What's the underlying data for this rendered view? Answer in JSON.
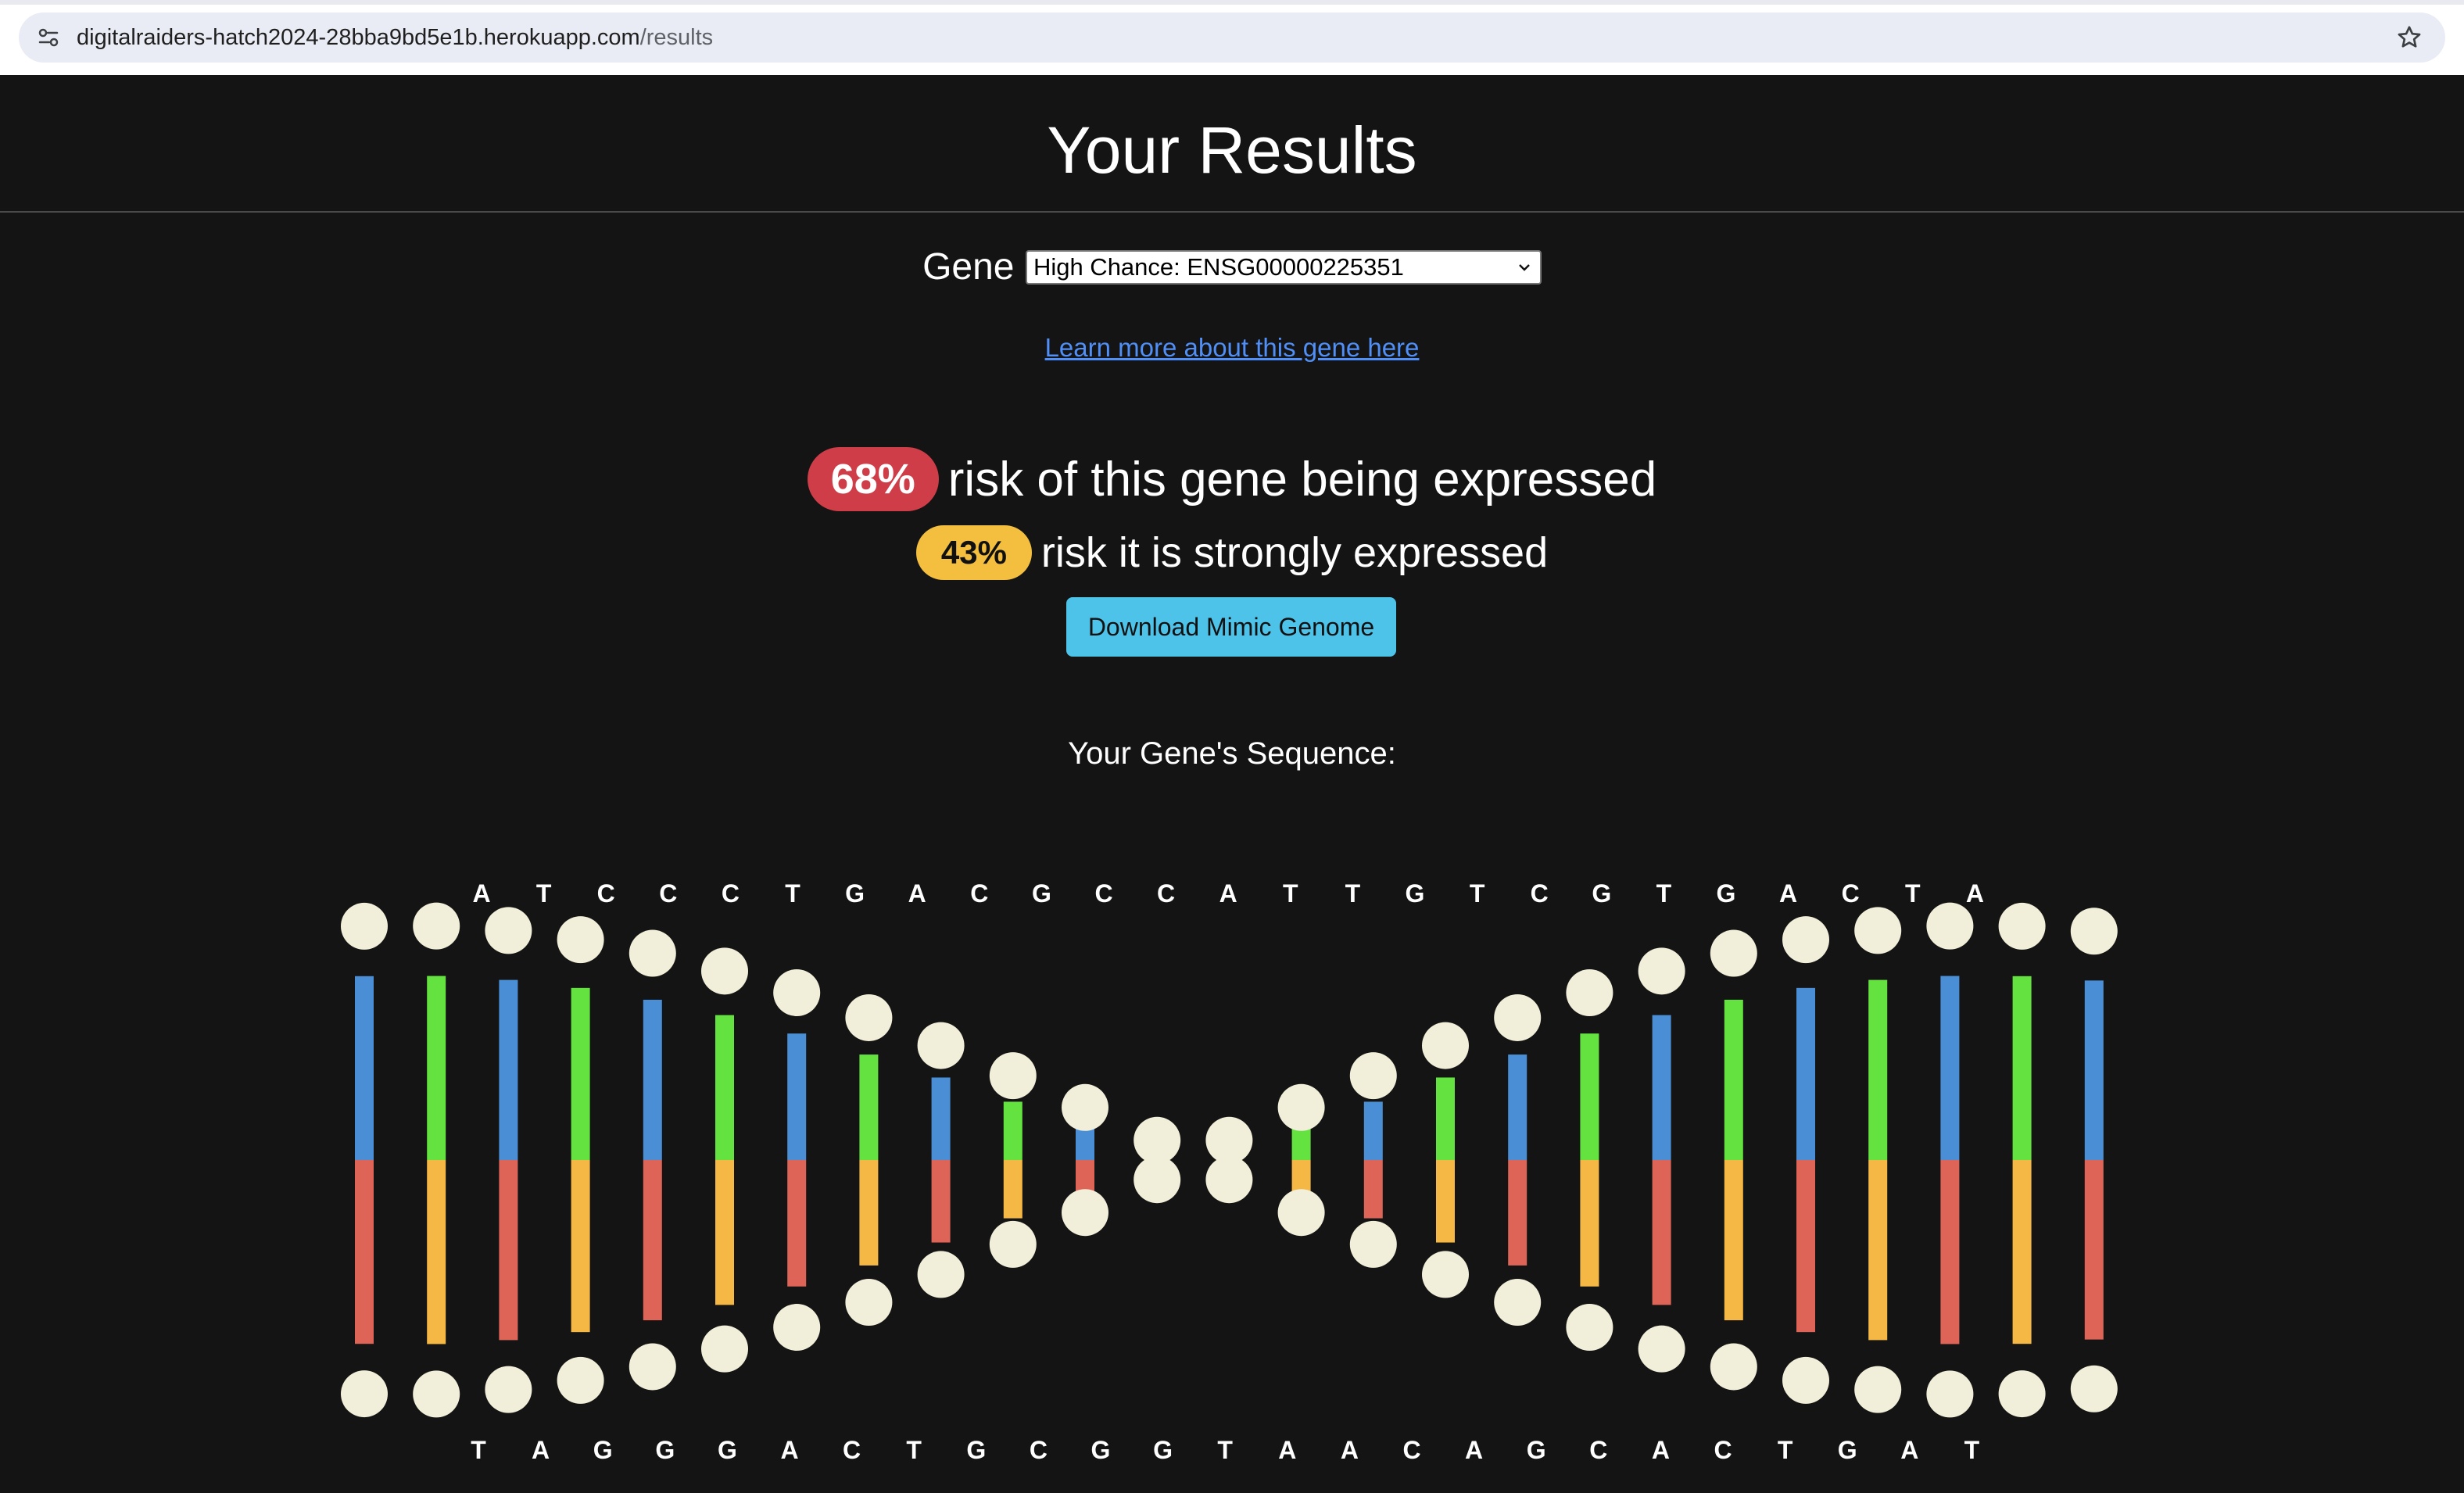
{
  "browser": {
    "url_host": "digitalraiders-hatch2024-28bba9bd5e1b.herokuapp.com",
    "url_path": "/results"
  },
  "page": {
    "title": "Your Results",
    "gene_label": "Gene",
    "gene_select_value": "High Chance: ENSG00000225351",
    "learn_link": "Learn more about this gene here",
    "risk_expressed_badge": "68%",
    "risk_expressed_text": "risk of this gene being expressed",
    "risk_strong_badge": "43%",
    "risk_strong_text": "risk it is strongly expressed",
    "download_button": "Download Mimic Genome",
    "sequence_title": "Your Gene's Sequence:"
  },
  "sequence": {
    "top": [
      "A",
      "T",
      "C",
      "C",
      "C",
      "T",
      "G",
      "A",
      "C",
      "G",
      "C",
      "C",
      "A",
      "T",
      "T",
      "G",
      "T",
      "C",
      "G",
      "T",
      "G",
      "A",
      "C",
      "T",
      "A"
    ],
    "bottom": [
      "T",
      "A",
      "G",
      "G",
      "G",
      "A",
      "C",
      "T",
      "G",
      "C",
      "G",
      "G",
      "T",
      "A",
      "A",
      "C",
      "A",
      "G",
      "C",
      "A",
      "C",
      "T",
      "G",
      "A",
      "T"
    ]
  },
  "colors": {
    "background": "#141414",
    "badge_red": "#cf3e48",
    "badge_yellow": "#f4bf3e",
    "button": "#4ec3ea",
    "link": "#4f8ff7",
    "strand_blue": "#4a8fd6",
    "strand_green": "#63e240",
    "strand_red": "#dd6456",
    "strand_orange": "#f5b845",
    "bead": "#f1eed9"
  }
}
